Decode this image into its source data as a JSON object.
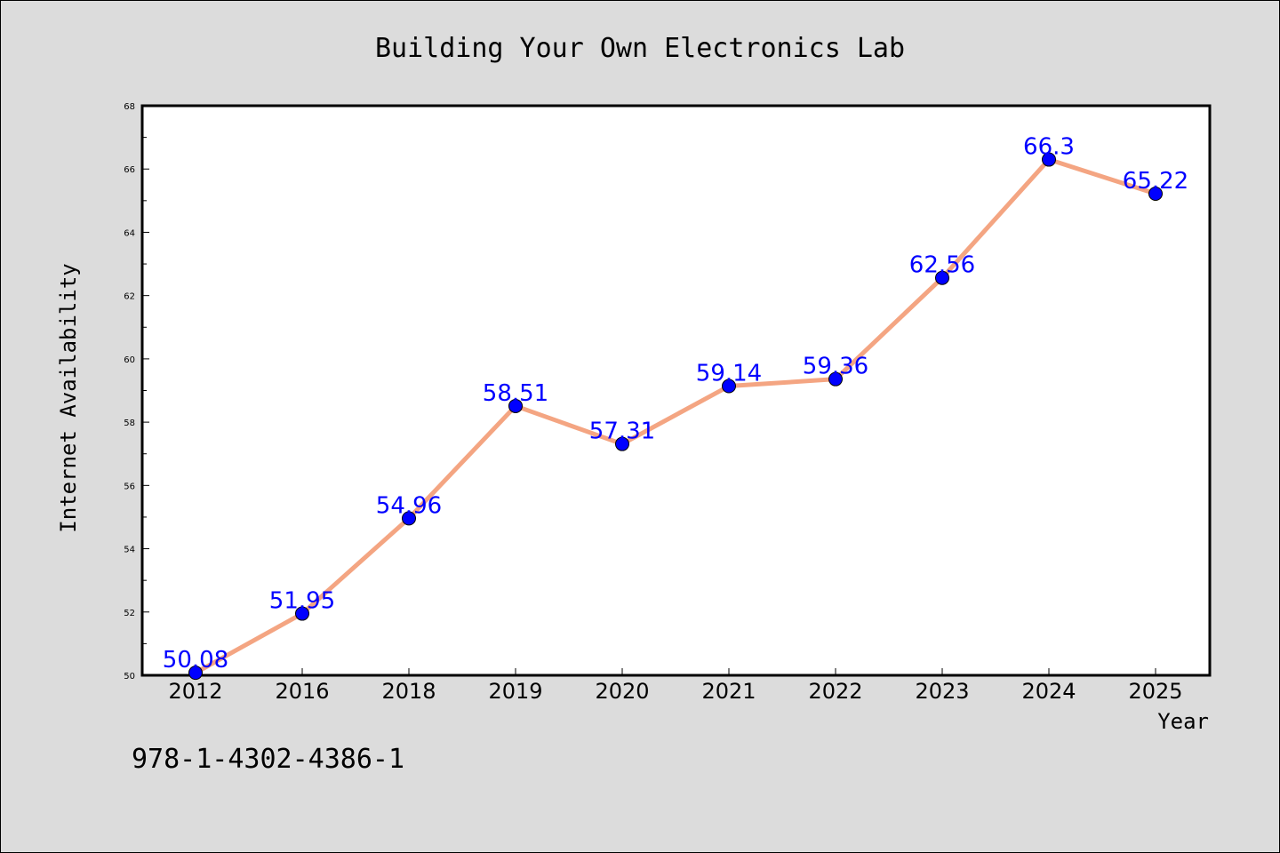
{
  "chart_data": {
    "type": "line",
    "title": "Building Your Own Electronics Lab",
    "xlabel": "Year",
    "ylabel": "Internet Availability",
    "categories": [
      "2012",
      "2016",
      "2018",
      "2019",
      "2020",
      "2021",
      "2022",
      "2023",
      "2024",
      "2025"
    ],
    "values": [
      50.08,
      51.95,
      54.96,
      58.51,
      57.31,
      59.14,
      59.36,
      62.56,
      66.3,
      65.22
    ],
    "data_labels": [
      "50.08",
      "51.95",
      "54.96",
      "58.51",
      "57.31",
      "59.14",
      "59.36",
      "62.56",
      "66.3",
      "65.22"
    ],
    "ylim": [
      50,
      68
    ],
    "yticks": [
      "50",
      "52",
      "54",
      "56",
      "58",
      "60",
      "62",
      "64",
      "66",
      "68"
    ],
    "grid": false,
    "line_color": "#f4a582",
    "marker_color": "#0000ff",
    "label_color": "#0000ff",
    "background": "#dcdcdc",
    "plot_background": "#ffffff"
  },
  "footer": {
    "isbn": "978-1-4302-4386-1"
  }
}
